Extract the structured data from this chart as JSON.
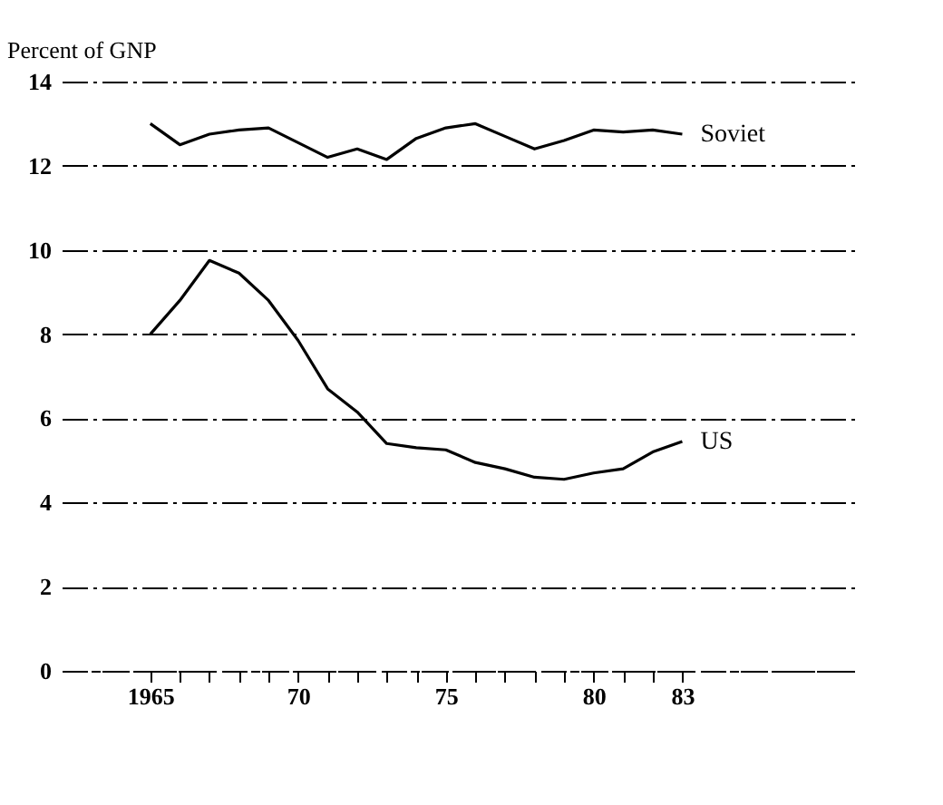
{
  "chart_data": {
    "type": "line",
    "ylabel": "Percent of GNP",
    "x": [
      1965,
      1966,
      1967,
      1968,
      1969,
      1970,
      1971,
      1972,
      1973,
      1974,
      1975,
      1976,
      1977,
      1978,
      1979,
      1980,
      1981,
      1982,
      1983
    ],
    "series": [
      {
        "name": "Soviet",
        "color": "#000000",
        "values": [
          13.0,
          12.5,
          12.75,
          12.85,
          12.9,
          12.55,
          12.2,
          12.4,
          12.15,
          12.65,
          12.9,
          13.0,
          12.7,
          12.4,
          12.6,
          12.85,
          12.8,
          12.85,
          12.75
        ]
      },
      {
        "name": "US",
        "color": "#000000",
        "values": [
          8.0,
          8.8,
          9.75,
          9.45,
          8.8,
          7.85,
          6.7,
          6.15,
          5.4,
          5.3,
          5.25,
          4.95,
          4.8,
          4.6,
          4.55,
          4.7,
          4.8,
          5.2,
          5.45
        ]
      }
    ],
    "xlim": [
      1962,
      1989
    ],
    "xticks": [
      {
        "value": 1965,
        "label": "1965"
      },
      {
        "value": 1966,
        "label": null
      },
      {
        "value": 1967,
        "label": null
      },
      {
        "value": 1968,
        "label": null
      },
      {
        "value": 1969,
        "label": null
      },
      {
        "value": 1970,
        "label": "70"
      },
      {
        "value": 1971,
        "label": null
      },
      {
        "value": 1972,
        "label": null
      },
      {
        "value": 1973,
        "label": null
      },
      {
        "value": 1974,
        "label": null
      },
      {
        "value": 1975,
        "label": "75"
      },
      {
        "value": 1976,
        "label": null
      },
      {
        "value": 1977,
        "label": null
      },
      {
        "value": 1978,
        "label": null
      },
      {
        "value": 1979,
        "label": null
      },
      {
        "value": 1980,
        "label": "80"
      },
      {
        "value": 1981,
        "label": null
      },
      {
        "value": 1982,
        "label": null
      },
      {
        "value": 1983,
        "label": "83"
      }
    ],
    "ylim": [
      0,
      14
    ],
    "yticks": [
      0,
      2,
      4,
      6,
      8,
      10,
      12,
      14
    ],
    "grid": "y",
    "legend": false,
    "marker": "none",
    "line_style": "solid"
  }
}
